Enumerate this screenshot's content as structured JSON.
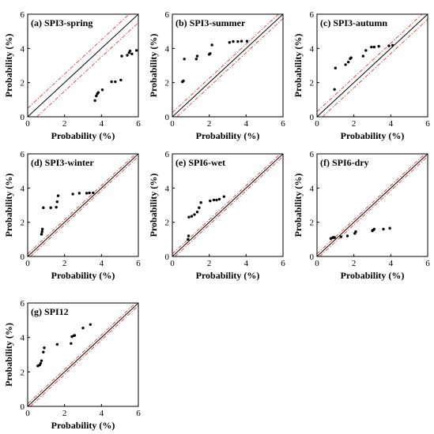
{
  "colors": {
    "points": "#000000",
    "identity_line": "#000000",
    "bound_lines": "#e8423a"
  },
  "chart_data": [
    {
      "type": "scatter",
      "title": "(a) SPI3-spring",
      "xlabel": "Probability (%)",
      "ylabel": "Probability (%)",
      "xlim": [
        0,
        6
      ],
      "ylim": [
        0,
        6
      ],
      "xticks": [
        "0",
        "2",
        "4",
        "6"
      ],
      "yticks": [
        "0",
        "2",
        "4",
        "6"
      ],
      "reference_lines": {
        "identity": true,
        "bound_offset": 0.5,
        "bound_style": "dash-dot"
      },
      "points": [
        [
          3.65,
          0.95
        ],
        [
          3.72,
          1.22
        ],
        [
          3.78,
          1.35
        ],
        [
          3.83,
          1.42
        ],
        [
          4.05,
          1.58
        ],
        [
          4.55,
          2.05
        ],
        [
          4.75,
          2.05
        ],
        [
          5.05,
          2.15
        ],
        [
          5.1,
          3.55
        ],
        [
          5.4,
          3.6
        ],
        [
          5.5,
          3.75
        ],
        [
          5.55,
          3.85
        ],
        [
          5.65,
          3.68
        ],
        [
          5.9,
          3.88
        ]
      ]
    },
    {
      "type": "scatter",
      "title": "(b) SPI3-summer",
      "xlabel": "Probability (%)",
      "ylabel": "Probability (%)",
      "xlim": [
        0,
        6
      ],
      "ylim": [
        0,
        6
      ],
      "xticks": [
        "0",
        "2",
        "4",
        "6"
      ],
      "yticks": [
        "0",
        "2",
        "4",
        "6"
      ],
      "reference_lines": {
        "identity": true,
        "bound_offset": 0.25,
        "bound_style": "dash-dot"
      },
      "points": [
        [
          0.55,
          2.05
        ],
        [
          0.6,
          2.1
        ],
        [
          0.65,
          3.38
        ],
        [
          1.3,
          3.38
        ],
        [
          1.35,
          3.55
        ],
        [
          2.0,
          3.65
        ],
        [
          2.05,
          3.7
        ],
        [
          2.15,
          4.2
        ],
        [
          3.1,
          4.35
        ],
        [
          3.3,
          4.4
        ],
        [
          3.55,
          4.4
        ],
        [
          3.75,
          4.42
        ],
        [
          4.05,
          4.42
        ]
      ]
    },
    {
      "type": "scatter",
      "title": "(c) SPI3-autumn",
      "xlabel": "Probability (%)",
      "ylabel": "Probability (%)",
      "xlim": [
        0,
        6
      ],
      "ylim": [
        0,
        6
      ],
      "xticks": [
        "0",
        "2",
        "4",
        "6"
      ],
      "yticks": [
        "0",
        "2",
        "4",
        "6"
      ],
      "reference_lines": {
        "identity": true,
        "bound_offset": 0.3,
        "bound_style": "dash-dot"
      },
      "points": [
        [
          0.95,
          1.6
        ],
        [
          1.0,
          2.85
        ],
        [
          1.55,
          3.05
        ],
        [
          1.7,
          3.2
        ],
        [
          1.8,
          3.4
        ],
        [
          1.85,
          3.45
        ],
        [
          2.5,
          3.55
        ],
        [
          2.65,
          3.88
        ],
        [
          2.95,
          4.08
        ],
        [
          3.1,
          4.08
        ],
        [
          3.35,
          4.12
        ],
        [
          3.9,
          4.15
        ],
        [
          4.1,
          4.18
        ]
      ]
    },
    {
      "type": "scatter",
      "title": "(d) SPI3-winter",
      "xlabel": "Probability (%)",
      "ylabel": "Probability (%)",
      "xlim": [
        0,
        6
      ],
      "ylim": [
        0,
        6
      ],
      "xticks": [
        "0",
        "2",
        "4",
        "6"
      ],
      "yticks": [
        "0",
        "2",
        "4",
        "6"
      ],
      "reference_lines": {
        "identity": true,
        "bound_offset": 0.15,
        "bound_style": "dash-dot"
      },
      "points": [
        [
          0.75,
          1.3
        ],
        [
          0.78,
          1.45
        ],
        [
          0.8,
          1.6
        ],
        [
          0.85,
          2.85
        ],
        [
          1.25,
          2.85
        ],
        [
          1.55,
          2.88
        ],
        [
          1.6,
          3.2
        ],
        [
          1.65,
          3.55
        ],
        [
          2.45,
          3.65
        ],
        [
          2.8,
          3.7
        ],
        [
          3.2,
          3.7
        ],
        [
          3.35,
          3.72
        ],
        [
          3.55,
          3.72
        ]
      ]
    },
    {
      "type": "scatter",
      "title": "(e) SPI6-wet",
      "xlabel": "Probability (%)",
      "ylabel": "Probability (%)",
      "xlim": [
        0,
        6
      ],
      "ylim": [
        0,
        6
      ],
      "xticks": [
        "0",
        "2",
        "4",
        "6"
      ],
      "yticks": [
        "0",
        "2",
        "4",
        "6"
      ],
      "reference_lines": {
        "identity": true,
        "bound_offset": 0.15,
        "bound_style": "dash-dot"
      },
      "points": [
        [
          0.85,
          1.0
        ],
        [
          0.88,
          1.2
        ],
        [
          0.9,
          2.3
        ],
        [
          1.05,
          2.35
        ],
        [
          1.2,
          2.45
        ],
        [
          1.35,
          2.6
        ],
        [
          1.45,
          2.85
        ],
        [
          1.55,
          3.15
        ],
        [
          2.05,
          3.25
        ],
        [
          2.25,
          3.3
        ],
        [
          2.4,
          3.3
        ],
        [
          2.55,
          3.35
        ],
        [
          2.8,
          3.5
        ]
      ]
    },
    {
      "type": "scatter",
      "title": "(f) SPI6-dry",
      "xlabel": "Probability (%)",
      "ylabel": "Probability (%)",
      "xlim": [
        0,
        6
      ],
      "ylim": [
        0,
        6
      ],
      "xticks": [
        "0",
        "2",
        "4",
        "6"
      ],
      "yticks": [
        "0",
        "2",
        "4",
        "6"
      ],
      "reference_lines": {
        "identity": true,
        "bound_offset": 0.15,
        "bound_style": "dash-dot"
      },
      "points": [
        [
          0.75,
          1.05
        ],
        [
          0.85,
          1.1
        ],
        [
          0.9,
          1.12
        ],
        [
          0.95,
          1.1
        ],
        [
          1.3,
          1.15
        ],
        [
          1.65,
          1.2
        ],
        [
          2.05,
          1.35
        ],
        [
          2.1,
          1.45
        ],
        [
          3.0,
          1.5
        ],
        [
          3.05,
          1.55
        ],
        [
          3.1,
          1.6
        ],
        [
          3.6,
          1.6
        ],
        [
          3.95,
          1.65
        ]
      ]
    },
    {
      "type": "scatter",
      "title": "(g) SPI12",
      "xlabel": "Probability (%)",
      "ylabel": "Probability (%)",
      "xlim": [
        0,
        6
      ],
      "ylim": [
        0,
        6
      ],
      "xticks": [
        "0",
        "2",
        "4",
        "6"
      ],
      "yticks": [
        "0",
        "2",
        "4",
        "6"
      ],
      "reference_lines": {
        "identity": true,
        "bound_offset": 0.15,
        "bound_style": "dash-dot"
      },
      "points": [
        [
          0.55,
          2.35
        ],
        [
          0.65,
          2.4
        ],
        [
          0.7,
          2.5
        ],
        [
          0.75,
          2.65
        ],
        [
          0.85,
          3.15
        ],
        [
          0.9,
          3.4
        ],
        [
          1.6,
          3.6
        ],
        [
          2.35,
          3.65
        ],
        [
          2.4,
          4.05
        ],
        [
          2.5,
          4.1
        ],
        [
          2.55,
          4.12
        ],
        [
          3.0,
          4.55
        ],
        [
          3.4,
          4.75
        ]
      ]
    }
  ]
}
